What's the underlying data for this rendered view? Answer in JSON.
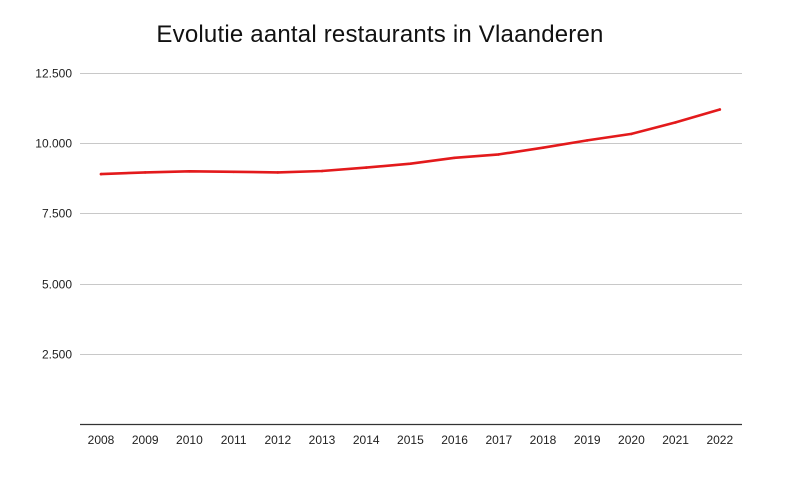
{
  "chart_data": {
    "type": "line",
    "title": "Evolutie aantal restaurants in Vlaanderen",
    "xlabel": "",
    "ylabel": "",
    "categories": [
      "2008",
      "2009",
      "2010",
      "2011",
      "2012",
      "2013",
      "2014",
      "2015",
      "2016",
      "2017",
      "2018",
      "2019",
      "2020",
      "2021",
      "2022"
    ],
    "series": [
      {
        "values": [
          8900,
          8960,
          9000,
          8980,
          8960,
          9010,
          9130,
          9270,
          9480,
          9600,
          9840,
          10100,
          10330,
          10740,
          11200
        ],
        "color": "#e31a1c"
      }
    ],
    "ylim": [
      0,
      12500
    ],
    "yticks": [
      2500,
      5000,
      7500,
      10000,
      12500
    ],
    "ytick_labels": [
      "2.500",
      "5.000",
      "7.500",
      "10.000",
      "12.500"
    ],
    "grid": true,
    "legend": "none"
  }
}
